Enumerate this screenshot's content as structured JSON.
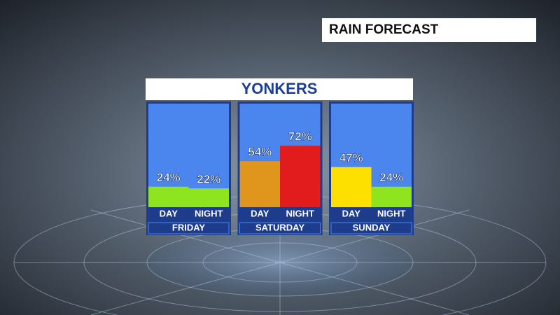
{
  "chart_data": {
    "type": "bar",
    "title": "RAIN FORECAST",
    "subtitle": "YONKERS",
    "categories": [
      "FRIDAY",
      "SATURDAY",
      "SUNDAY"
    ],
    "series": [
      {
        "name": "DAY",
        "values": [
          24,
          54,
          47
        ],
        "value_labels": [
          "24%",
          "54%",
          "47%"
        ],
        "colors": [
          "#8ee41f",
          "#e0961c",
          "#fde000"
        ]
      },
      {
        "name": "NIGHT",
        "values": [
          22,
          72,
          24
        ],
        "value_labels": [
          "22%",
          "72%",
          "24%"
        ],
        "colors": [
          "#8ee41f",
          "#e21c1c",
          "#8ee41f"
        ]
      }
    ]
  }
}
